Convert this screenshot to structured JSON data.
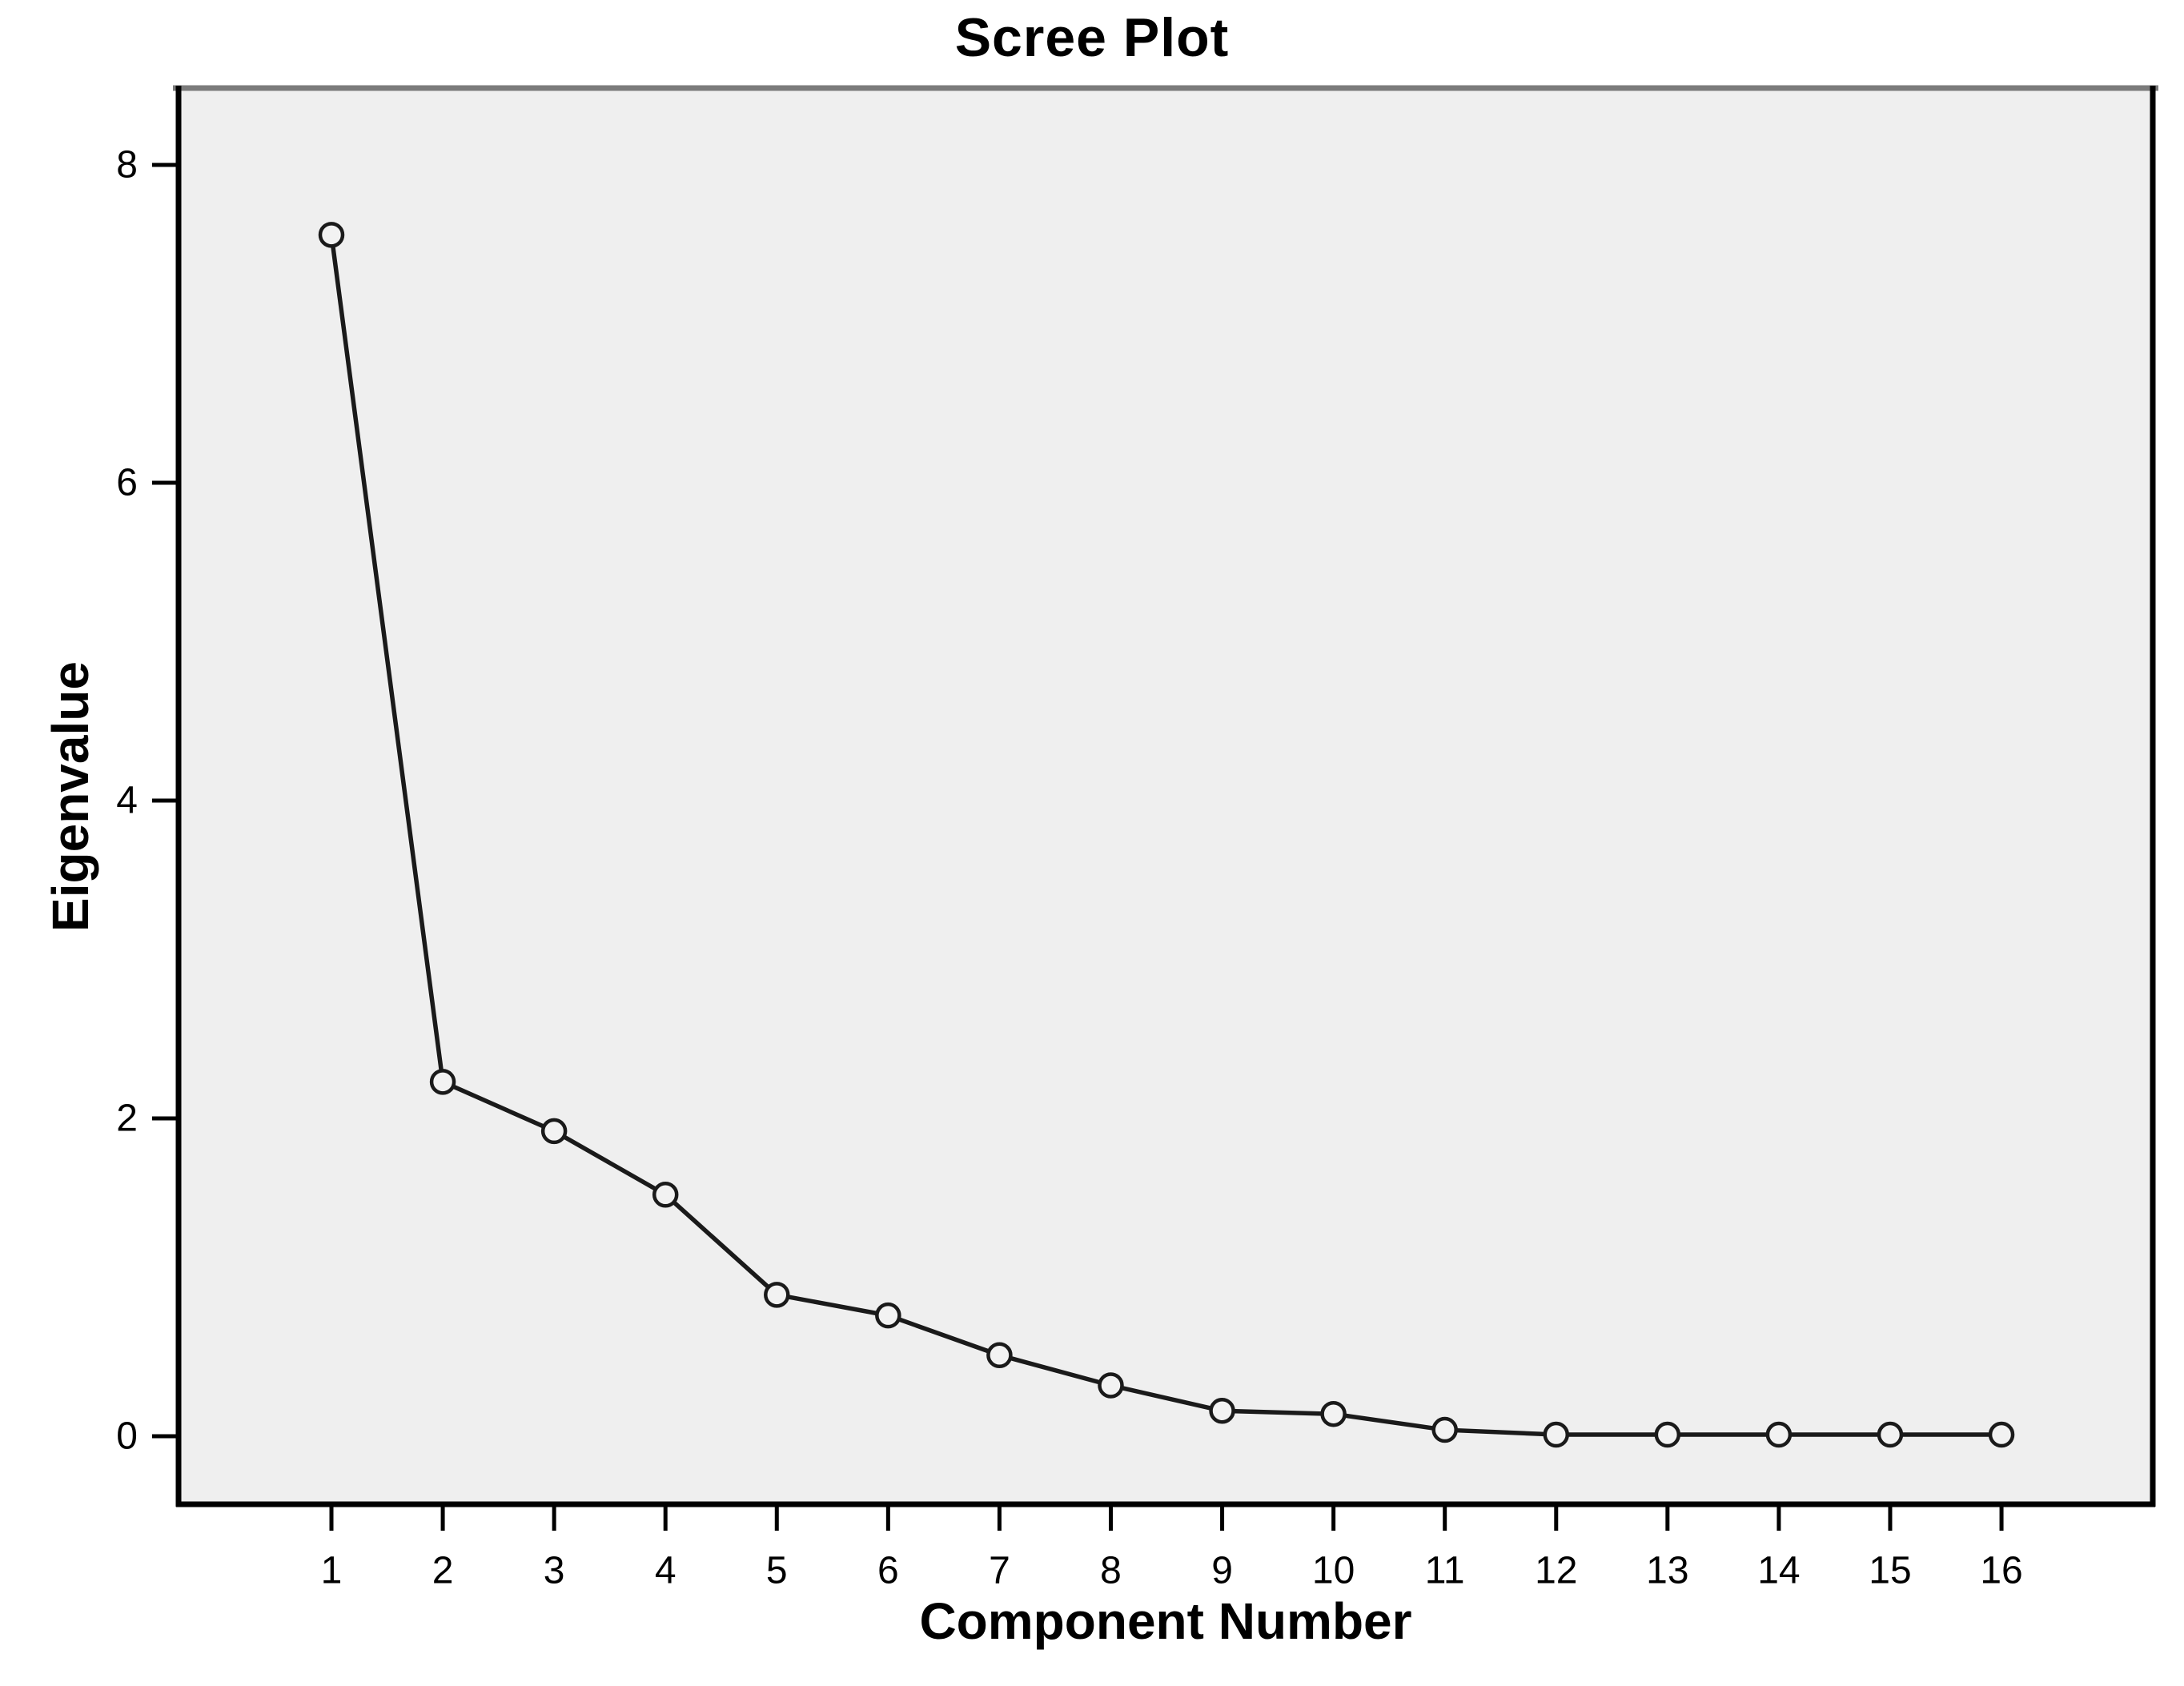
{
  "chart_data": {
    "type": "line",
    "title": "Scree Plot",
    "xlabel": "Component Number",
    "ylabel": "Eigenvalue",
    "categories": [
      1,
      2,
      3,
      4,
      5,
      6,
      7,
      8,
      9,
      10,
      11,
      12,
      13,
      14,
      15,
      16
    ],
    "values": [
      7.56,
      2.23,
      1.92,
      1.52,
      0.89,
      0.76,
      0.51,
      0.32,
      0.16,
      0.14,
      0.04,
      0.01,
      0.01,
      0.01,
      0.01,
      0.01
    ],
    "series": [
      {
        "name": "Eigenvalue",
        "values": [
          7.56,
          2.23,
          1.92,
          1.52,
          0.89,
          0.76,
          0.51,
          0.32,
          0.16,
          0.14,
          0.04,
          0.01,
          0.01,
          0.01,
          0.01,
          0.01
        ]
      }
    ],
    "y_ticks": [
      0,
      2,
      4,
      6,
      8
    ],
    "ylim": [
      -0.44,
      8.5
    ],
    "xlim_categories": [
      1,
      16
    ],
    "grid": false,
    "legend": false,
    "marker": "open-circle",
    "colors": {
      "plot_background": "#efefef",
      "outer_background": "#ffffff",
      "line": "#1a1a1a",
      "marker_stroke": "#1a1a1a",
      "marker_fill": "#f2f2f2",
      "frame": "#000000",
      "frame_top": "#7b7b7b",
      "tick": "#000000",
      "text": "#000000"
    }
  }
}
